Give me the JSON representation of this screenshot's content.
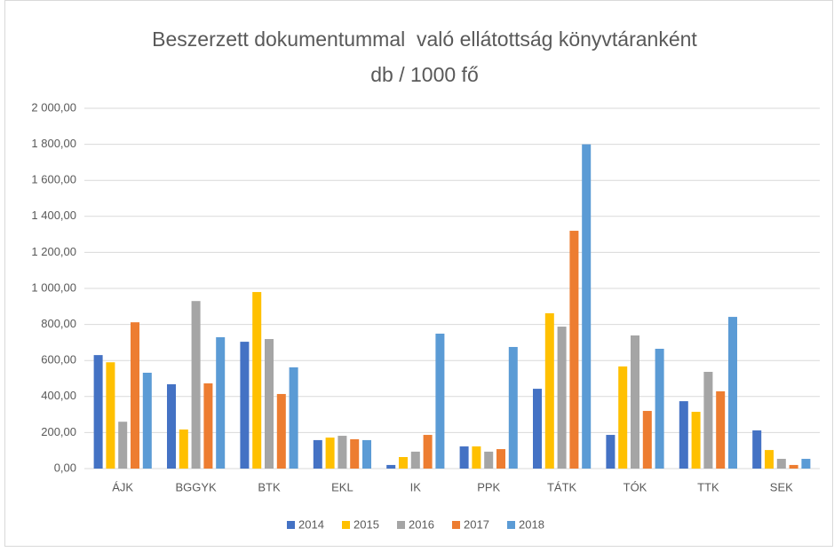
{
  "chart_data": {
    "type": "bar",
    "title": "Beszerzett dokumentummal  való ellátottság könyvtáranként",
    "subtitle": "db / 1000 fő",
    "categories": [
      "ÁJK",
      "BGGYK",
      "BTK",
      "EKL",
      "IK",
      "PPK",
      "TÁTK",
      "TÓK",
      "TTK",
      "SEK"
    ],
    "series": [
      {
        "name": "2014",
        "color": "#4472c4",
        "values": [
          630,
          468,
          704,
          158,
          20,
          123,
          443,
          187,
          374,
          212
        ]
      },
      {
        "name": "2015",
        "color": "#ffc000",
        "values": [
          590,
          217,
          980,
          172,
          64,
          123,
          862,
          567,
          315,
          103
        ]
      },
      {
        "name": "2016",
        "color": "#a5a5a5",
        "values": [
          260,
          930,
          719,
          182,
          94,
          94,
          788,
          739,
          537,
          54
        ]
      },
      {
        "name": "2017",
        "color": "#ed7d31",
        "values": [
          812,
          473,
          414,
          163,
          187,
          108,
          1320,
          320,
          429,
          20
        ]
      },
      {
        "name": "2018",
        "color": "#5b9bd5",
        "values": [
          532,
          729,
          562,
          158,
          749,
          675,
          1800,
          665,
          842,
          54
        ]
      }
    ],
    "ylim": [
      0,
      2000
    ],
    "yticks": [
      {
        "value": 0,
        "label": "0,00"
      },
      {
        "value": 200,
        "label": "200,00"
      },
      {
        "value": 400,
        "label": "400,00"
      },
      {
        "value": 600,
        "label": "600,00"
      },
      {
        "value": 800,
        "label": "800,00"
      },
      {
        "value": 1000,
        "label": "1 000,00"
      },
      {
        "value": 1200,
        "label": "1 200,00"
      },
      {
        "value": 1400,
        "label": "1 400,00"
      },
      {
        "value": 1600,
        "label": "1 600,00"
      },
      {
        "value": 1800,
        "label": "1 800,00"
      },
      {
        "value": 2000,
        "label": "2 000,00"
      }
    ],
    "grid": true,
    "legend": "bottom"
  }
}
